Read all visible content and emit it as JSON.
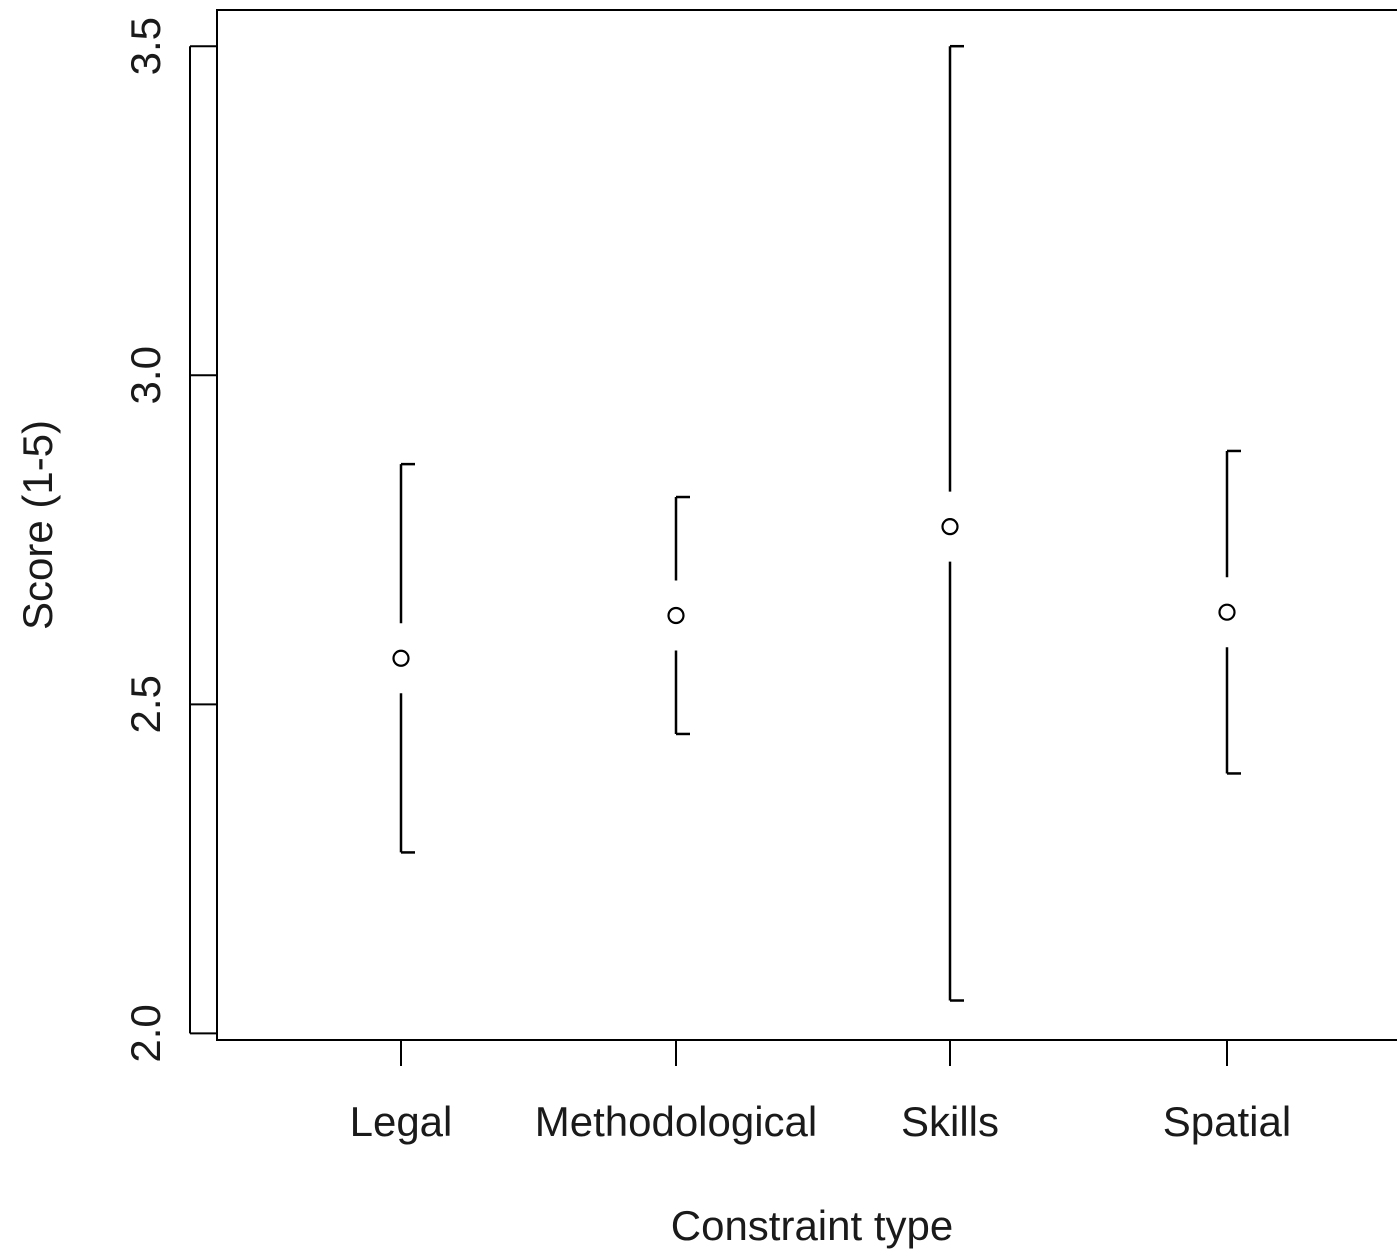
{
  "chart_data": {
    "type": "scatter",
    "xlabel": "Constraint type",
    "ylabel": "Score (1-5)",
    "categories": [
      "Legal",
      "Methodological",
      "Skills",
      "Spatial"
    ],
    "means": [
      2.57,
      2.635,
      2.77,
      2.64
    ],
    "lower": [
      2.275,
      2.455,
      2.05,
      2.395
    ],
    "upper": [
      2.865,
      2.815,
      3.5,
      2.885
    ],
    "ylim": [
      1.99,
      3.555
    ],
    "yticks": [
      "2.0",
      "2.5",
      "3.0",
      "3.5"
    ],
    "grid": false,
    "legend": "none"
  }
}
